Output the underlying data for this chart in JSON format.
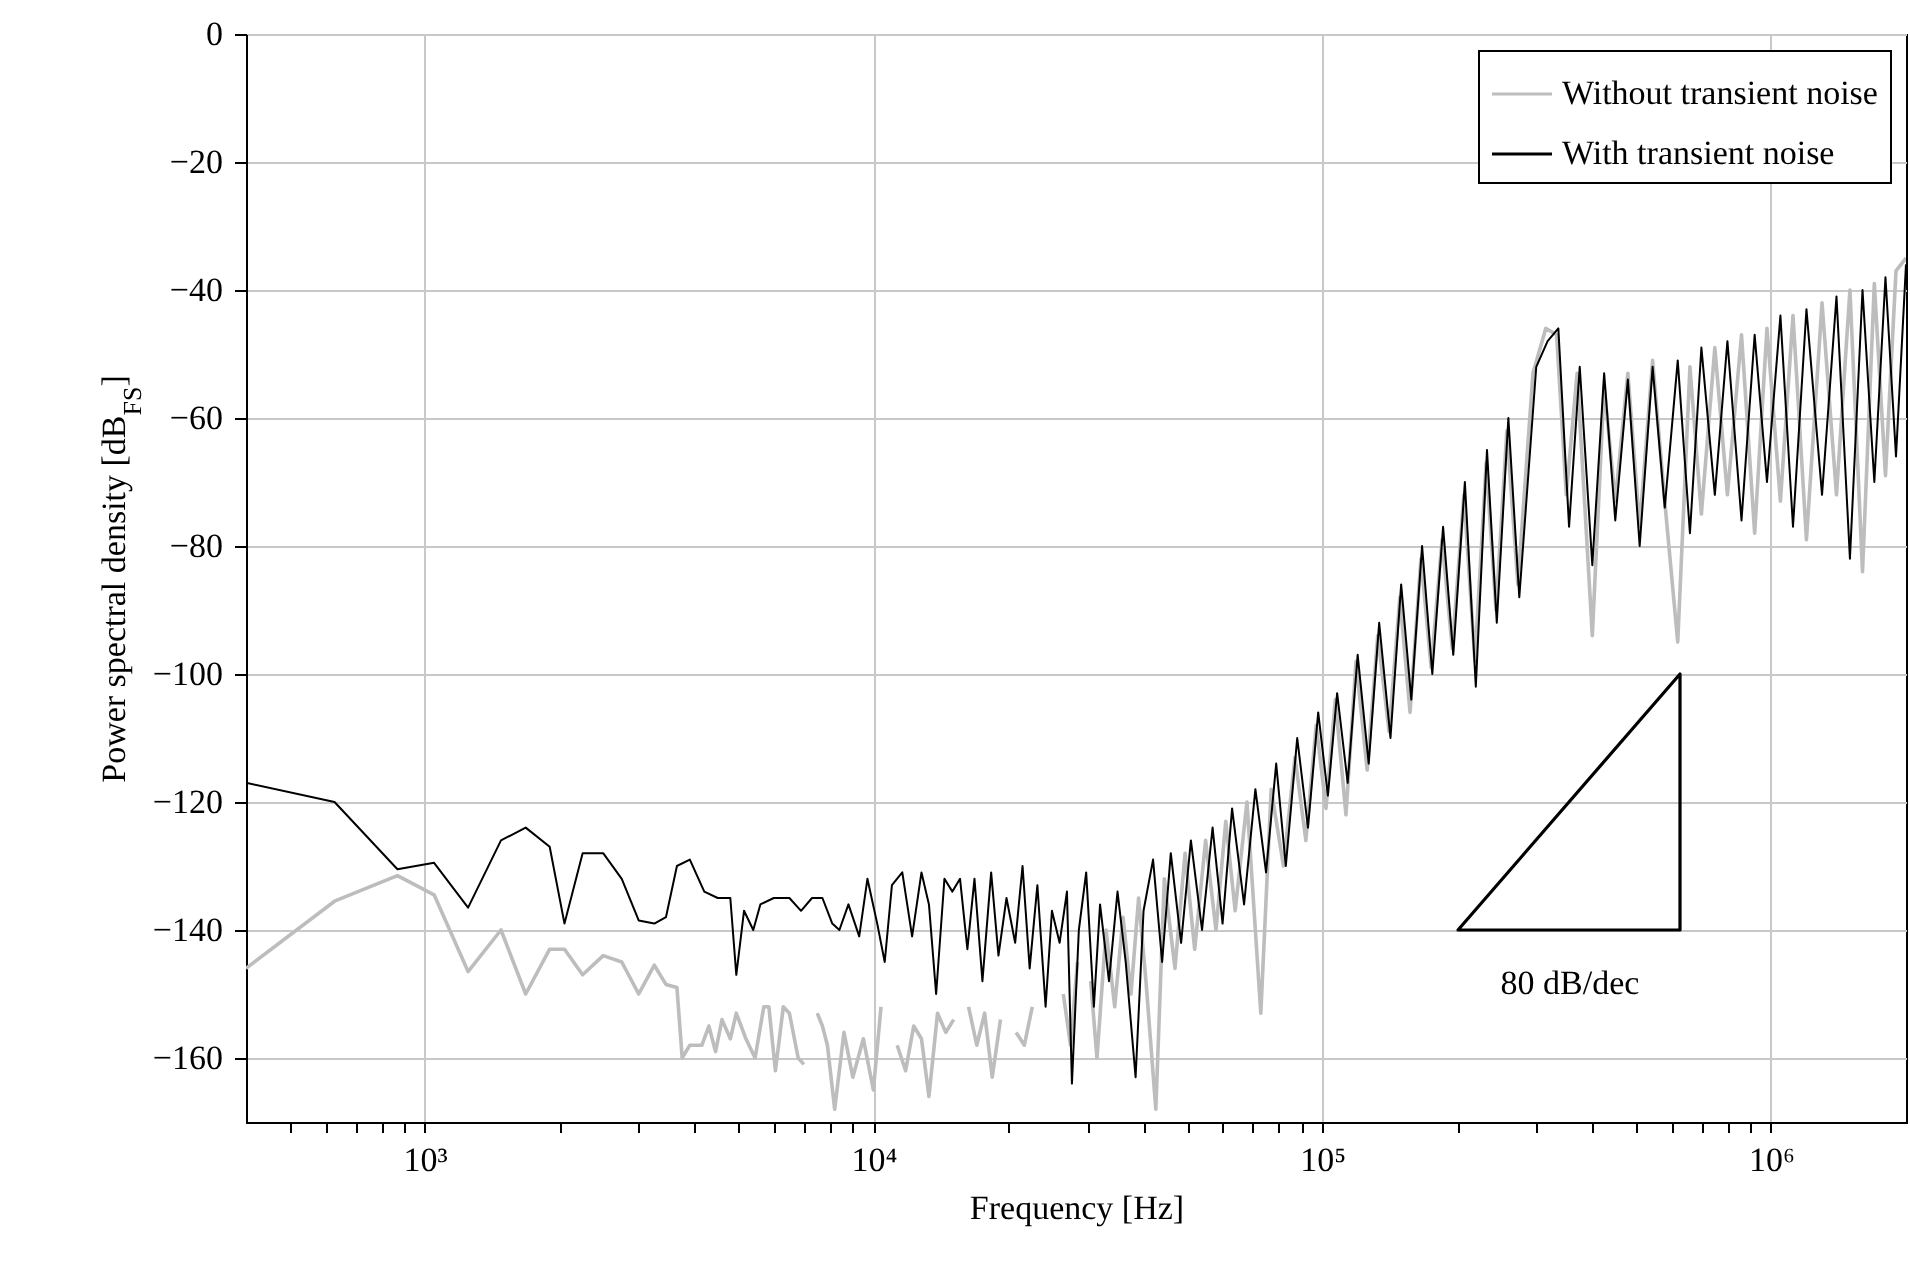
{
  "chart_data": {
    "type": "line",
    "xlabel": "Frequency [Hz]",
    "ylabel": "Power spectral density [dB$_{FS}$]",
    "log": "x",
    "grid": true,
    "legend": "top right",
    "xlim": [
      400,
      2000000
    ],
    "ylim": [
      -170,
      0
    ],
    "xticks": [
      {
        "value": 500,
        "label": null
      },
      {
        "value": 600,
        "label": null
      },
      {
        "value": 700,
        "label": null
      },
      {
        "value": 800,
        "label": null
      },
      {
        "value": 900,
        "label": null
      },
      {
        "value": 1000,
        "label": "10³"
      },
      {
        "value": 2000,
        "label": null
      },
      {
        "value": 3000,
        "label": null
      },
      {
        "value": 4000,
        "label": null
      },
      {
        "value": 5000,
        "label": null
      },
      {
        "value": 6000,
        "label": null
      },
      {
        "value": 7000,
        "label": null
      },
      {
        "value": 8000,
        "label": null
      },
      {
        "value": 9000,
        "label": null
      },
      {
        "value": 10000,
        "label": "10⁴"
      },
      {
        "value": 20000,
        "label": null
      },
      {
        "value": 30000,
        "label": null
      },
      {
        "value": 40000,
        "label": null
      },
      {
        "value": 50000,
        "label": null
      },
      {
        "value": 60000,
        "label": null
      },
      {
        "value": 70000,
        "label": null
      },
      {
        "value": 80000,
        "label": null
      },
      {
        "value": 90000,
        "label": null
      },
      {
        "value": 100000,
        "label": "10⁵"
      },
      {
        "value": 200000,
        "label": null
      },
      {
        "value": 300000,
        "label": null
      },
      {
        "value": 400000,
        "label": null
      },
      {
        "value": 500000,
        "label": null
      },
      {
        "value": 600000,
        "label": null
      },
      {
        "value": 700000,
        "label": null
      },
      {
        "value": 800000,
        "label": null
      },
      {
        "value": 900000,
        "label": null
      },
      {
        "value": 1000000,
        "label": "10⁶"
      }
    ],
    "yticks": [
      {
        "value": -160,
        "label": "−160"
      },
      {
        "value": -140,
        "label": "−140"
      },
      {
        "value": -120,
        "label": "−120"
      },
      {
        "value": -100,
        "label": "−100"
      },
      {
        "value": -80,
        "label": "−80"
      },
      {
        "value": -60,
        "label": "−60"
      },
      {
        "value": -40,
        "label": "−40"
      },
      {
        "value": -20,
        "label": "−20"
      },
      0
    ],
    "annotations": [
      "80 dB/dec"
    ],
    "series": [
      {
        "name": "Without transient noise",
        "color": "#bdbdbd",
        "x": [
          400,
          630,
          870,
          1050,
          1250,
          1480,
          1680,
          1900,
          2050,
          2250,
          2500,
          2750,
          3000,
          3250,
          3450,
          3650,
          3750,
          3900,
          4150,
          4300,
          4450,
          4600,
          4800,
          4950,
          5200,
          5450,
          5700,
          5850,
          6050,
          6300,
          6500,
          6800,
          7000,
          7200,
          7500,
          7700,
          7900,
          8200,
          8600,
          9000,
          9500,
          10000,
          10400,
          10800,
          11300,
          11800,
          12300,
          12800,
          13300,
          13900,
          14500,
          15100,
          15700,
          16300,
          17000,
          17700,
          18400,
          19200,
          20000,
          20800,
          21700,
          22600,
          23500,
          24500,
          25500,
          26500,
          27500,
          28500,
          29500,
          30500,
          31500,
          33000,
          34500,
          36000,
          37500,
          39000,
          40500,
          42600,
          44500,
          47000,
          49500,
          52000,
          55000,
          58000,
          61000,
          64000,
          68000,
          73000,
          77000,
          82000,
          87000,
          92000,
          97000,
          102000,
          107000,
          113000,
          119000,
          126000,
          133000,
          141000,
          149000,
          157000,
          166000,
          175000,
          185000,
          195000,
          207000,
          219000,
          232000,
          244000,
          258000,
          273000,
          295000,
          315000,
          333000,
          350000,
          370000,
          400000,
          425000,
          450000,
          480000,
          510000,
          545000,
          580000,
          620000,
          660000,
          700000,
          750000,
          800000,
          860000,
          920000,
          980000,
          1050000,
          1120000,
          1200000,
          1300000,
          1400000,
          1500000,
          1600000,
          1700000,
          1800000,
          1900000,
          2000000
        ],
        "values": [
          -146,
          -135.5,
          -131.5,
          -134.5,
          -146.5,
          -140,
          -150,
          -143,
          -143,
          -147,
          -144,
          -145,
          -150,
          -145.5,
          -148.5,
          -149,
          -160,
          -158,
          -158,
          -155,
          -159,
          -154,
          -157,
          -153,
          -157,
          -160,
          -152,
          -152,
          -162,
          -152,
          -153,
          -160,
          -161,
          null,
          -153,
          -155,
          -158,
          -168,
          -156,
          -163,
          -157,
          -165,
          -152,
          null,
          -158,
          -162,
          -155,
          -157,
          -166,
          -153,
          -156,
          -154,
          null,
          -152,
          -158,
          -153,
          -163,
          -154,
          null,
          -156,
          -158,
          -152,
          null,
          null,
          null,
          -150,
          -158,
          -145,
          null,
          -148,
          -160,
          -140,
          -152,
          -138,
          -150,
          -135,
          -148,
          -168,
          -132,
          -146,
          -128,
          -143,
          -126,
          -140,
          -123,
          -137,
          -120,
          -153,
          -118,
          -130,
          -113,
          -126,
          -108,
          -121,
          -104,
          -122,
          -98,
          -115,
          -94,
          -109,
          -88,
          -106,
          -82,
          -99,
          -79,
          -96,
          -72,
          -98,
          -67,
          -90,
          -62,
          -86,
          -53,
          -46,
          -47,
          -72,
          -53,
          -94,
          -55,
          -73,
          -53,
          -77,
          -51,
          -73,
          -95,
          -52,
          -75,
          -49,
          -72,
          -47,
          -78,
          -46,
          -73,
          -44,
          -79,
          -42,
          -72,
          -40,
          -84,
          -39,
          -69,
          -37,
          -35
        ]
      },
      {
        "name": "With transient noise",
        "color": "#000000",
        "x": [
          400,
          630,
          870,
          1050,
          1250,
          1480,
          1680,
          1900,
          2050,
          2250,
          2500,
          2750,
          3000,
          3250,
          3450,
          3650,
          3900,
          4200,
          4500,
          4800,
          4950,
          5150,
          5400,
          5600,
          6000,
          6500,
          6900,
          7300,
          7700,
          8100,
          8400,
          8800,
          9300,
          9700,
          10200,
          10600,
          11000,
          11600,
          12200,
          12800,
          13300,
          13800,
          14400,
          15000,
          15600,
          16200,
          16800,
          17500,
          18300,
          19000,
          19800,
          20700,
          21500,
          22300,
          23200,
          24200,
          25000,
          26000,
          27000,
          27700,
          28700,
          29800,
          31000,
          32000,
          33500,
          35000,
          36500,
          38400,
          40000,
          42000,
          44000,
          46000,
          48500,
          51000,
          54000,
          57000,
          60000,
          63000,
          67000,
          71000,
          75000,
          79000,
          83000,
          88000,
          93000,
          98000,
          103000,
          108000,
          114000,
          120000,
          127000,
          134000,
          142000,
          150000,
          158000,
          167000,
          176000,
          186000,
          196000,
          208000,
          220000,
          233000,
          245000,
          260000,
          275000,
          300000,
          318000,
          336000,
          355000,
          375000,
          400000,
          425000,
          450000,
          480000,
          510000,
          545000,
          580000,
          620000,
          660000,
          700000,
          750000,
          800000,
          860000,
          920000,
          980000,
          1050000,
          1120000,
          1200000,
          1300000,
          1400000,
          1500000,
          1600000,
          1700000,
          1800000,
          1900000,
          2000000
        ],
        "values": [
          -117,
          -120,
          -130.5,
          -129.5,
          -136.5,
          -126,
          -124,
          -127,
          -139,
          -128,
          -128,
          -132,
          -138.5,
          -139,
          -138,
          -130,
          -129,
          -134,
          -135,
          -135,
          -147,
          -137,
          -140,
          -136,
          -135,
          -135,
          -137,
          -135,
          -135,
          -139,
          -140,
          -136,
          -141,
          -132,
          -139,
          -145,
          -133,
          -131,
          -141,
          -131,
          -136,
          -150,
          -132,
          -134,
          -132,
          -143,
          -132,
          -148,
          -131,
          -144,
          -135,
          -142,
          -130,
          -146,
          -133,
          -152,
          -137,
          -142,
          -134,
          -164,
          -140,
          -131,
          -152,
          -136,
          -148,
          -134,
          -145,
          -163,
          -137,
          -129,
          -145,
          -128,
          -142,
          -126,
          -140,
          -124,
          -139,
          -121,
          -136,
          -118,
          -131,
          -114,
          -130,
          -110,
          -124,
          -106,
          -119,
          -103,
          -117,
          -97,
          -114,
          -92,
          -110,
          -86,
          -104,
          -80,
          -100,
          -77,
          -97,
          -70,
          -102,
          -65,
          -92,
          -60,
          -88,
          -52,
          -48,
          -46,
          -77,
          -52,
          -83,
          -53,
          -76,
          -54,
          -80,
          -52,
          -74,
          -51,
          -78,
          -49,
          -72,
          -48,
          -76,
          -47,
          -70,
          -44,
          -77,
          -43,
          -72,
          -41,
          -82,
          -40,
          -70,
          -38,
          -66,
          -36
        ]
      }
    ]
  }
}
